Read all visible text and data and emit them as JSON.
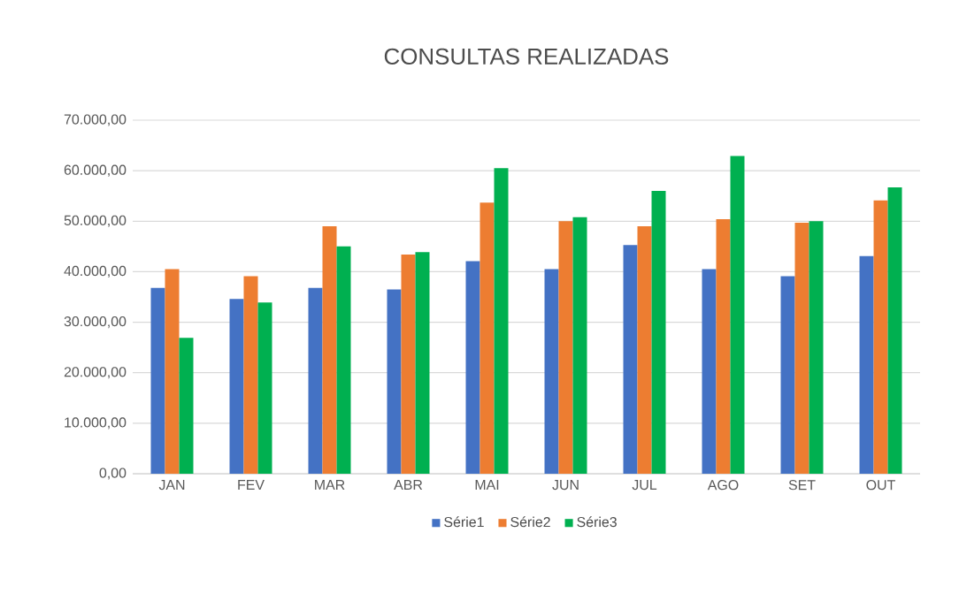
{
  "chart_data": {
    "type": "bar",
    "title": "CONSULTAS REALIZADAS",
    "categories": [
      "JAN",
      "FEV",
      "MAR",
      "ABR",
      "MAI",
      "JUN",
      "JUL",
      "AGO",
      "SET",
      "OUT"
    ],
    "series": [
      {
        "name": "Série1",
        "color": "#4472c4",
        "values": [
          36800,
          34600,
          36800,
          36500,
          42100,
          40500,
          45300,
          40500,
          39100,
          43100
        ]
      },
      {
        "name": "Série2",
        "color": "#ed7d31",
        "values": [
          40500,
          39100,
          49000,
          43400,
          53700,
          50000,
          49000,
          50400,
          49700,
          54100
        ]
      },
      {
        "name": "Série3",
        "color": "#00b050",
        "values": [
          26900,
          33900,
          45000,
          43900,
          60500,
          50800,
          56000,
          62900,
          50000,
          56700
        ]
      }
    ],
    "ylim": [
      0,
      70000
    ],
    "yticks": [
      {
        "value": 0,
        "label": "0,00"
      },
      {
        "value": 10000,
        "label": "10.000,00"
      },
      {
        "value": 20000,
        "label": "20.000,00"
      },
      {
        "value": 30000,
        "label": "30.000,00"
      },
      {
        "value": 40000,
        "label": "40.000,00"
      },
      {
        "value": 50000,
        "label": "50.000,00"
      },
      {
        "value": 60000,
        "label": "60.000,00"
      },
      {
        "value": 70000,
        "label": "70.000,00"
      }
    ],
    "grid": "y",
    "legend": "bottom"
  }
}
